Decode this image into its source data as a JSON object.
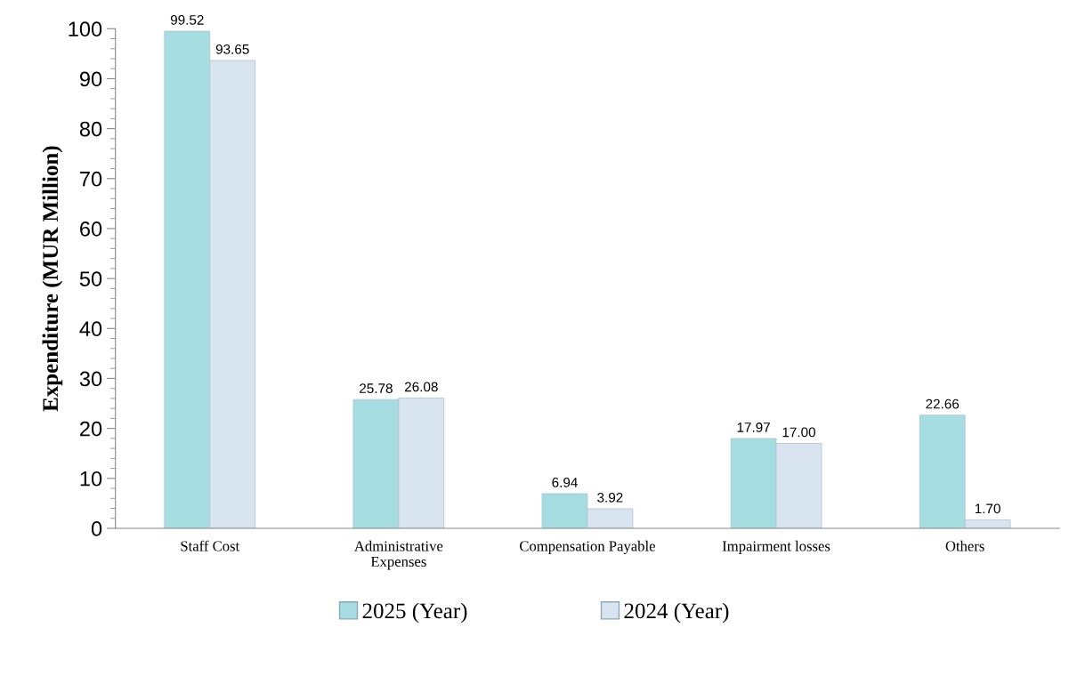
{
  "chart_data": {
    "type": "bar",
    "ylabel": "Expenditure (MUR Million)",
    "categories": [
      "Staff Cost",
      "Administrative\nExpenses",
      "Compensation Payable",
      "Impairment losses",
      "Others"
    ],
    "series": [
      {
        "name": "2025 (Year)",
        "color": "#a6dde0",
        "values": [
          99.52,
          25.78,
          6.94,
          17.97,
          22.66
        ],
        "value_labels": [
          "99.52",
          "25.78",
          "6.94",
          "17.97",
          "22.66"
        ]
      },
      {
        "name": "2024 (Year)",
        "color": "#d8e4ef",
        "values": [
          93.65,
          26.08,
          3.92,
          17.0,
          1.7
        ],
        "value_labels": [
          "93.65",
          "26.08",
          "3.92",
          "17.00",
          "1.70"
        ]
      }
    ],
    "ylim": [
      0,
      100
    ],
    "yticks": [
      0,
      10,
      20,
      30,
      40,
      50,
      60,
      70,
      80,
      90,
      100
    ],
    "grid": false,
    "legend": "bottom"
  }
}
